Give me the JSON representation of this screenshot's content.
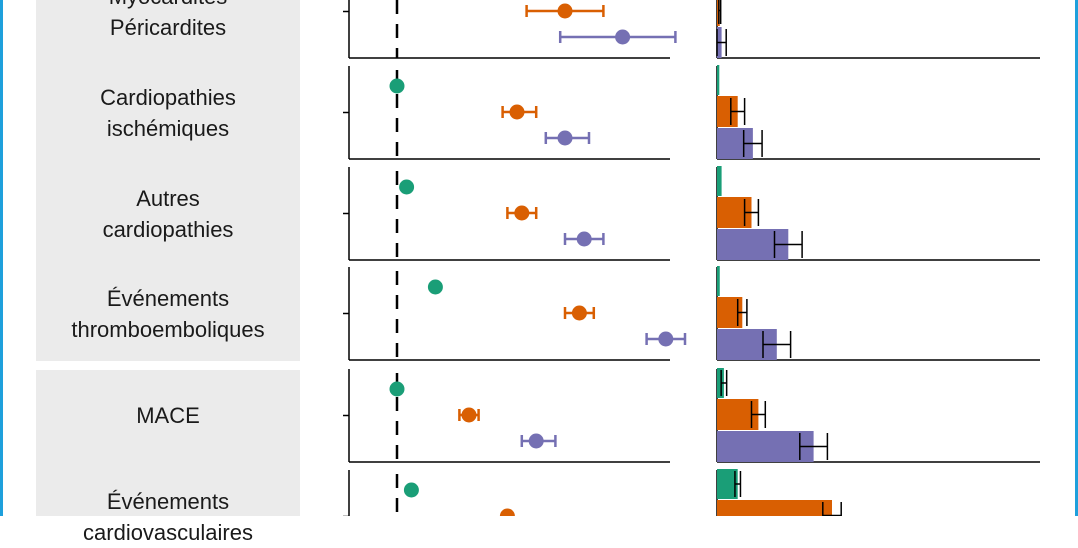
{
  "colors": {
    "frame": "#1ea0dc",
    "green": "#1a9e77",
    "orange": "#d95f02",
    "purple": "#7570b3",
    "panel": "#ebebeb"
  },
  "chart_data": {
    "type": "forest-plot-with-bar-chart",
    "series": [
      {
        "key": "green",
        "color": "#1a9e77"
      },
      {
        "key": "orange",
        "color": "#d95f02"
      },
      {
        "key": "purple",
        "color": "#7570b3"
      }
    ],
    "groups": [
      {
        "label": "Myocardites\nPéricardites",
        "label_offset": -30,
        "forest": [
          null,
          {
            "est": 5.0,
            "lo": 4.2,
            "hi": 5.8
          },
          {
            "est": 6.2,
            "lo": 4.9,
            "hi": 7.3
          }
        ],
        "bars": [
          0.4,
          0.6,
          1.0
        ],
        "bar_err": [
          0.2,
          0.2,
          1.0
        ]
      },
      {
        "label": "Cardiopathies\nischémiques",
        "forest": [
          {
            "est": 1.5,
            "lo": 1.5,
            "hi": 1.5
          },
          {
            "est": 4.0,
            "lo": 3.7,
            "hi": 4.4
          },
          {
            "est": 5.0,
            "lo": 4.6,
            "hi": 5.5
          }
        ],
        "bars": [
          0.5,
          4.5,
          7.8
        ],
        "bar_err": [
          0.0,
          1.5,
          2.0
        ]
      },
      {
        "label": "Autres\ncardiopathies",
        "forest": [
          {
            "est": 1.7,
            "lo": 1.7,
            "hi": 1.7
          },
          {
            "est": 4.1,
            "lo": 3.8,
            "hi": 4.4
          },
          {
            "est": 5.4,
            "lo": 5.0,
            "hi": 5.8
          }
        ],
        "bars": [
          1.0,
          7.5,
          15.5
        ],
        "bar_err": [
          0.0,
          1.5,
          3.0
        ]
      },
      {
        "label": "Événements\nthromboemboliques",
        "forest": [
          {
            "est": 2.3,
            "lo": 2.3,
            "hi": 2.3
          },
          {
            "est": 5.3,
            "lo": 5.0,
            "hi": 5.6
          },
          {
            "est": 7.1,
            "lo": 6.7,
            "hi": 7.5
          }
        ],
        "bars": [
          0.6,
          5.5,
          13.0
        ],
        "bar_err": [
          0.0,
          1.0,
          3.0
        ]
      },
      {
        "label": "MACE",
        "forest": [
          {
            "est": 1.5,
            "lo": 1.5,
            "hi": 1.5
          },
          {
            "est": 3.0,
            "lo": 2.8,
            "hi": 3.2
          },
          {
            "est": 4.4,
            "lo": 4.1,
            "hi": 4.8
          }
        ],
        "bars": [
          1.5,
          9.0,
          21.0
        ],
        "bar_err": [
          0.6,
          1.5,
          3.0
        ]
      },
      {
        "label": "Événements\ncardiovasculaires",
        "label_offset": 0,
        "forest": [
          {
            "est": 1.8,
            "lo": 1.8,
            "hi": 1.8
          },
          {
            "est": 3.8,
            "lo": 3.8,
            "hi": 3.8
          },
          null
        ],
        "bars": [
          4.5,
          25.0,
          null
        ],
        "bar_err": [
          0.6,
          2.0,
          null
        ]
      }
    ],
    "panels": [
      [
        0,
        3
      ],
      [
        4,
        5
      ]
    ]
  }
}
